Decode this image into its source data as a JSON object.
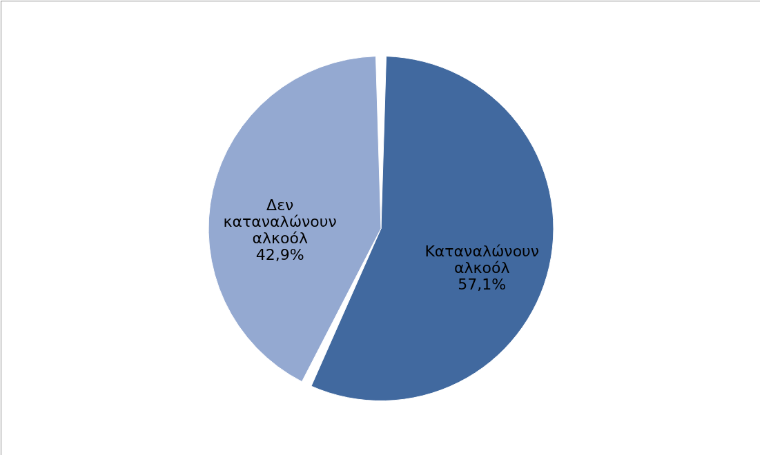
{
  "chart_data": {
    "type": "pie",
    "categories": [
      "Καταναλώνουν αλκοόλ",
      "Δεν καταναλώνουν αλκοόλ"
    ],
    "values": [
      57.1,
      42.9
    ],
    "colors": [
      "#41699f",
      "#94a9d1"
    ],
    "value_labels": [
      "57,1%",
      "42,9%"
    ],
    "legend": false
  }
}
